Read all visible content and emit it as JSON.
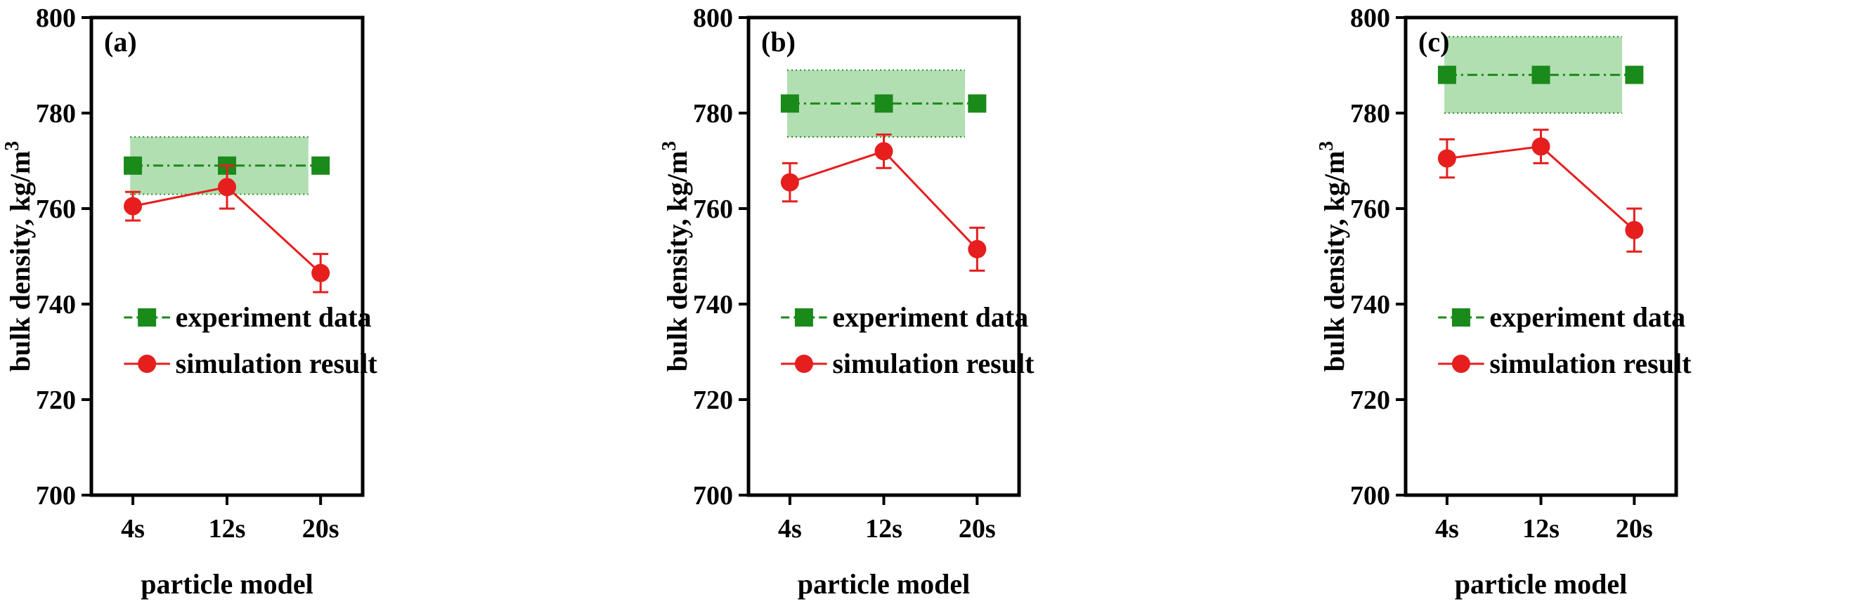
{
  "chart_data": [
    {
      "type": "line",
      "panel_label": "(a)",
      "categories": [
        "4s",
        "12s",
        "20s"
      ],
      "xlabel": "particle model",
      "ylabel": "bulk density, kg/m",
      "ylabel_superscript": "3",
      "ylim": [
        700,
        800
      ],
      "yticks": [
        "700",
        "720",
        "740",
        "760",
        "780",
        "800"
      ],
      "band": [
        763,
        775
      ],
      "series": [
        {
          "name": "experiment data",
          "values": [
            769,
            769,
            769
          ],
          "color": "#1a8a1a",
          "marker": "square",
          "line": "dash-dot"
        },
        {
          "name": "simulation result",
          "values": [
            760.5,
            764.5,
            746.5
          ],
          "errors": [
            3,
            4.5,
            4
          ],
          "color": "#e61e1e",
          "marker": "circle",
          "line": "solid"
        }
      ]
    },
    {
      "type": "line",
      "panel_label": "(b)",
      "categories": [
        "4s",
        "12s",
        "20s"
      ],
      "xlabel": "particle model",
      "ylabel": "bulk density, kg/m",
      "ylabel_superscript": "3",
      "ylim": [
        700,
        800
      ],
      "yticks": [
        "700",
        "720",
        "740",
        "760",
        "780",
        "800"
      ],
      "band": [
        775,
        789
      ],
      "series": [
        {
          "name": "experiment data",
          "values": [
            782,
            782,
            782
          ],
          "color": "#1a8a1a",
          "marker": "square",
          "line": "dash-dot"
        },
        {
          "name": "simulation result",
          "values": [
            765.5,
            772,
            751.5
          ],
          "errors": [
            4,
            3.5,
            4.5
          ],
          "color": "#e61e1e",
          "marker": "circle",
          "line": "solid"
        }
      ]
    },
    {
      "type": "line",
      "panel_label": "(c)",
      "categories": [
        "4s",
        "12s",
        "20s"
      ],
      "xlabel": "particle model",
      "ylabel": "bulk density, kg/m",
      "ylabel_superscript": "3",
      "ylim": [
        700,
        800
      ],
      "yticks": [
        "700",
        "720",
        "740",
        "760",
        "780",
        "800"
      ],
      "band": [
        780,
        796
      ],
      "series": [
        {
          "name": "experiment data",
          "values": [
            788,
            788,
            788
          ],
          "color": "#1a8a1a",
          "marker": "square",
          "line": "dash-dot"
        },
        {
          "name": "simulation result",
          "values": [
            770.5,
            773,
            755.5
          ],
          "errors": [
            4,
            3.5,
            4.5
          ],
          "color": "#e61e1e",
          "marker": "circle",
          "line": "solid"
        }
      ]
    }
  ],
  "colors": {
    "band_fill": "#a8dca8",
    "band_edge": "#2e8b2e"
  }
}
